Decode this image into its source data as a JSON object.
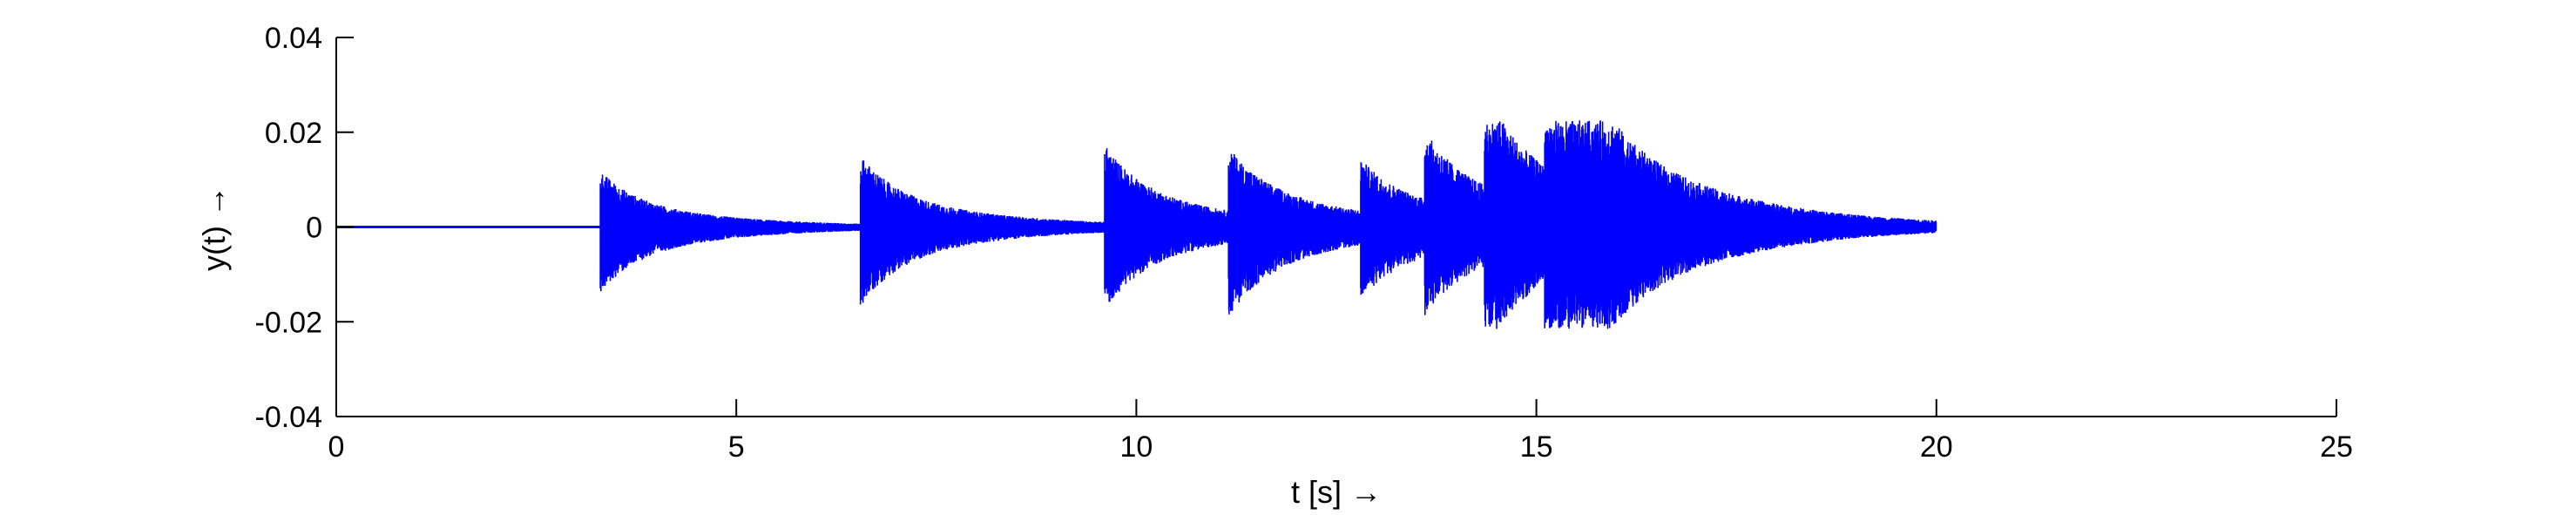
{
  "chart_data": {
    "type": "line",
    "title": "",
    "xlabel": "t [s] →",
    "ylabel": "y(t)  →",
    "xlim": [
      0,
      25
    ],
    "ylim": [
      -0.04,
      0.04
    ],
    "xticks": [
      0,
      5,
      10,
      15,
      20,
      25
    ],
    "xtick_labels": [
      "0",
      "5",
      "10",
      "15",
      "20",
      "25"
    ],
    "yticks": [
      -0.04,
      -0.02,
      0,
      0.02,
      0.04
    ],
    "ytick_labels": [
      "-0.04",
      "-0.02",
      "0",
      "0.02",
      "0.04"
    ],
    "grid": false,
    "line_color": "#0000ff",
    "series": [
      {
        "signal_end_s": 20.0,
        "note_onsets": [
          {
            "t": 3.3,
            "max": 0.012,
            "min": -0.014
          },
          {
            "t": 6.55,
            "max": 0.0145,
            "min": -0.016
          },
          {
            "t": 9.6,
            "max": 0.0165,
            "min": -0.0165
          },
          {
            "t": 11.15,
            "max": 0.0135,
            "min": -0.0155
          },
          {
            "t": 12.8,
            "max": 0.011,
            "min": -0.0115
          },
          {
            "t": 13.6,
            "max": 0.0145,
            "min": -0.0125
          },
          {
            "t": 14.35,
            "max": 0.021,
            "min": -0.019
          },
          {
            "t": 15.1,
            "max": 0.022,
            "min": -0.021
          },
          {
            "t": 15.5,
            "max": 0.016,
            "min": -0.015
          }
        ]
      }
    ]
  }
}
